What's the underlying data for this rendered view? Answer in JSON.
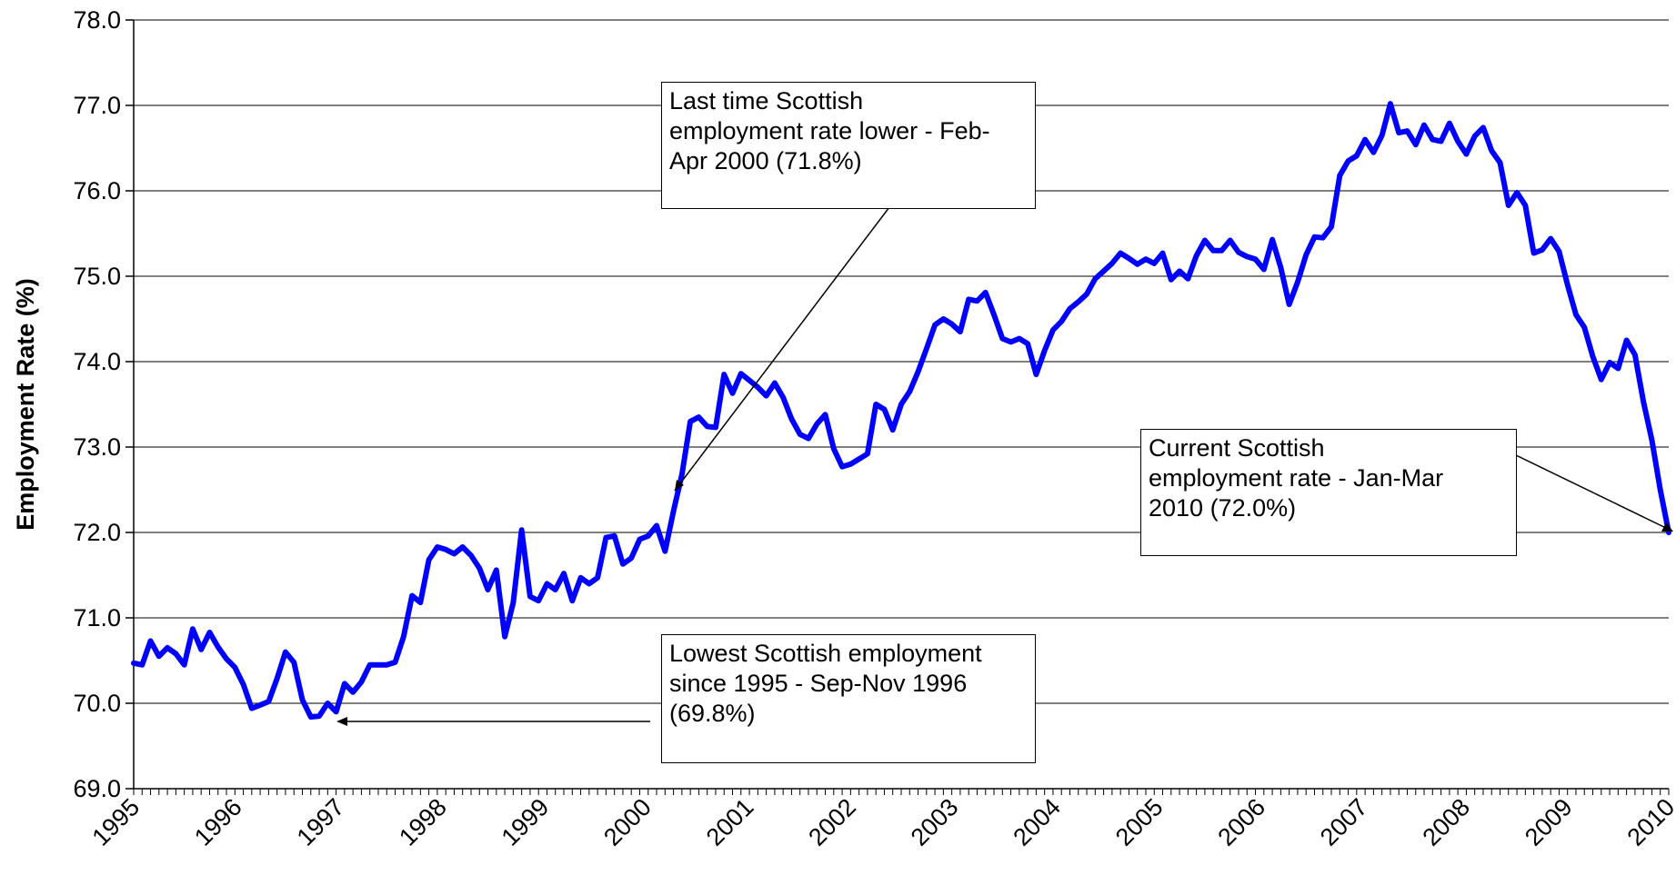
{
  "chart_data": {
    "type": "line",
    "title": "",
    "xlabel": "",
    "ylabel": "Employment Rate (%)",
    "ylim": [
      69.0,
      78.0
    ],
    "y_ticks": [
      "69.0",
      "70.0",
      "71.0",
      "72.0",
      "73.0",
      "74.0",
      "75.0",
      "76.0",
      "77.0",
      "78.0"
    ],
    "x_tick_labels": [
      "1995",
      "1996",
      "1997",
      "1998",
      "1999",
      "2000",
      "2001",
      "2002",
      "2003",
      "2004",
      "2005",
      "2006",
      "2007",
      "2008",
      "2009",
      "2010"
    ],
    "grid": "horizontal",
    "legend": "none",
    "series": [
      {
        "color": "#0000ff",
        "period_start": "1995",
        "period_end": "Jan-Mar 2010",
        "values": [
          70.47,
          70.45,
          70.73,
          70.55,
          70.65,
          70.58,
          70.45,
          70.87,
          70.63,
          70.83,
          70.66,
          70.52,
          70.42,
          70.22,
          69.94,
          69.98,
          70.02,
          70.29,
          70.6,
          70.48,
          70.04,
          69.84,
          69.85,
          70.0,
          69.9,
          70.23,
          70.13,
          70.25,
          70.45,
          70.45,
          70.45,
          70.48,
          70.78,
          71.26,
          71.18,
          71.68,
          71.83,
          71.8,
          71.75,
          71.83,
          71.73,
          71.58,
          71.33,
          71.56,
          70.78,
          71.18,
          72.03,
          71.25,
          71.2,
          71.4,
          71.33,
          71.52,
          71.2,
          71.47,
          71.4,
          71.47,
          71.94,
          71.96,
          71.63,
          71.7,
          71.92,
          71.96,
          72.08,
          71.78,
          72.25,
          72.68,
          73.3,
          73.35,
          73.24,
          73.23,
          73.85,
          73.63,
          73.86,
          73.78,
          73.7,
          73.6,
          73.75,
          73.58,
          73.33,
          73.15,
          73.1,
          73.27,
          73.38,
          72.98,
          72.77,
          72.8,
          72.86,
          72.92,
          73.5,
          73.44,
          73.2,
          73.5,
          73.65,
          73.88,
          74.15,
          74.43,
          74.5,
          74.44,
          74.35,
          74.73,
          74.71,
          74.81,
          74.55,
          74.27,
          74.23,
          74.27,
          74.21,
          73.85,
          74.13,
          74.37,
          74.47,
          74.62,
          74.7,
          74.79,
          74.97,
          75.06,
          75.15,
          75.27,
          75.21,
          75.14,
          75.2,
          75.15,
          75.27,
          74.96,
          75.06,
          74.97,
          75.24,
          75.42,
          75.3,
          75.3,
          75.42,
          75.28,
          75.23,
          75.2,
          75.08,
          75.43,
          75.1,
          74.67,
          74.93,
          75.25,
          75.46,
          75.45,
          75.58,
          76.18,
          76.35,
          76.41,
          76.6,
          76.45,
          76.65,
          77.02,
          76.68,
          76.7,
          76.54,
          76.77,
          76.6,
          76.58,
          76.79,
          76.58,
          76.43,
          76.64,
          76.74,
          76.47,
          76.33,
          75.83,
          75.98,
          75.83,
          75.27,
          75.31,
          75.44,
          75.29,
          74.9,
          74.55,
          74.4,
          74.06,
          73.79,
          73.99,
          73.92,
          74.25,
          74.08,
          73.53,
          73.08,
          72.5,
          72.0
        ]
      }
    ],
    "annotations": [
      {
        "lines": [
          "Last time Scottish",
          "employment rate lower - Feb-",
          "Apr 2000 (71.8%)"
        ]
      },
      {
        "lines": [
          "Lowest Scottish employment",
          "since 1995 - Sep-Nov 1996",
          "(69.8%)"
        ]
      },
      {
        "lines": [
          "Current Scottish",
          "employment rate - Jan-Mar",
          "2010 (72.0%)"
        ]
      }
    ]
  }
}
